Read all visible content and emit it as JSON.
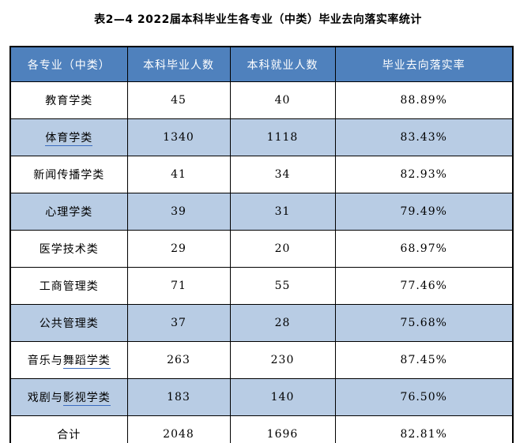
{
  "title": "表2—4 2022届本科毕业生各专业（中类）毕业去向落实率统计",
  "colors": {
    "header_bg": "#4F81BD",
    "header_text": "#ffffff",
    "shaded_row_bg": "#B8CCE4",
    "link_underline": "#3A6BBF",
    "border": "#000000"
  },
  "table": {
    "columns": [
      "各专业（中类）",
      "本科毕业人数",
      "本科就业人数",
      "毕业去向落实率"
    ],
    "rows": [
      {
        "major": {
          "plain": "教育学类",
          "underlined": ""
        },
        "graduates": "45",
        "employed": "40",
        "rate": "88.89%",
        "shaded": false
      },
      {
        "major": {
          "plain": "",
          "underlined": "体育学类"
        },
        "graduates": "1340",
        "employed": "1118",
        "rate": "83.43%",
        "shaded": true
      },
      {
        "major": {
          "plain": "新闻传播学类",
          "underlined": ""
        },
        "graduates": "41",
        "employed": "34",
        "rate": "82.93%",
        "shaded": false
      },
      {
        "major": {
          "plain": "心理学类",
          "underlined": ""
        },
        "graduates": "39",
        "employed": "31",
        "rate": "79.49%",
        "shaded": true
      },
      {
        "major": {
          "plain": "医学技术类",
          "underlined": ""
        },
        "graduates": "29",
        "employed": "20",
        "rate": "68.97%",
        "shaded": false
      },
      {
        "major": {
          "plain": "工商管理类",
          "underlined": ""
        },
        "graduates": "71",
        "employed": "55",
        "rate": "77.46%",
        "shaded": false
      },
      {
        "major": {
          "plain": "公共管理类",
          "underlined": ""
        },
        "graduates": "37",
        "employed": "28",
        "rate": "75.68%",
        "shaded": true
      },
      {
        "major": {
          "plain": "音乐与",
          "underlined": "舞蹈学类"
        },
        "graduates": "263",
        "employed": "230",
        "rate": "87.45%",
        "shaded": false
      },
      {
        "major": {
          "plain": "戏剧与",
          "underlined": "影视学类"
        },
        "graduates": "183",
        "employed": "140",
        "rate": "76.50%",
        "shaded": true
      },
      {
        "major": {
          "plain": "合计",
          "underlined": ""
        },
        "graduates": "2048",
        "employed": "1696",
        "rate": "82.81%",
        "shaded": false
      }
    ]
  }
}
